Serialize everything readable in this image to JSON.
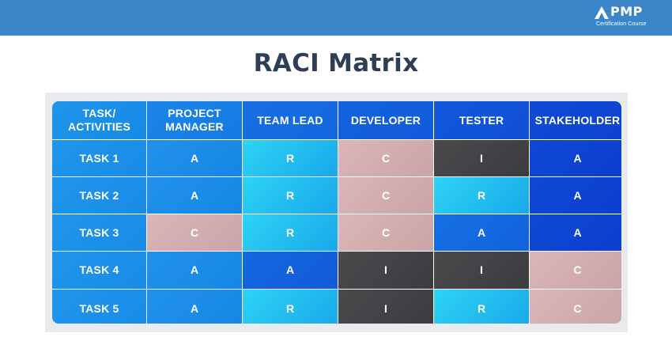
{
  "header": {
    "logo": {
      "brand": "PMP",
      "subtitle": "Certification Course",
      "icon": "pmp-logo-icon"
    }
  },
  "title": "RACI Matrix",
  "matrix": {
    "corner": "TASK/\nACTIVITIES",
    "columns": [
      "PROJECT\nMANAGER",
      "TEAM LEAD",
      "DEVELOPER",
      "TESTER",
      "STAKEHOLDER"
    ],
    "rows": [
      {
        "label": "TASK 1",
        "values": [
          "A",
          "R",
          "C",
          "I",
          "A"
        ]
      },
      {
        "label": "TASK 2",
        "values": [
          "A",
          "R",
          "C",
          "R",
          "A"
        ]
      },
      {
        "label": "TASK 3",
        "values": [
          "C",
          "R",
          "C",
          "A",
          "A"
        ]
      },
      {
        "label": "TASK 4",
        "values": [
          "A",
          "A",
          "I",
          "I",
          "C"
        ]
      },
      {
        "label": "TASK 5",
        "values": [
          "A",
          "R",
          "I",
          "R",
          "C"
        ]
      }
    ]
  },
  "colors": {
    "topbar": "#3a86c8",
    "title": "#2d3e55",
    "responsible": "#2dd4f4",
    "consulted": "#dbb6b8",
    "informed": "#4a4a4c",
    "accountable": "#1570e2"
  }
}
